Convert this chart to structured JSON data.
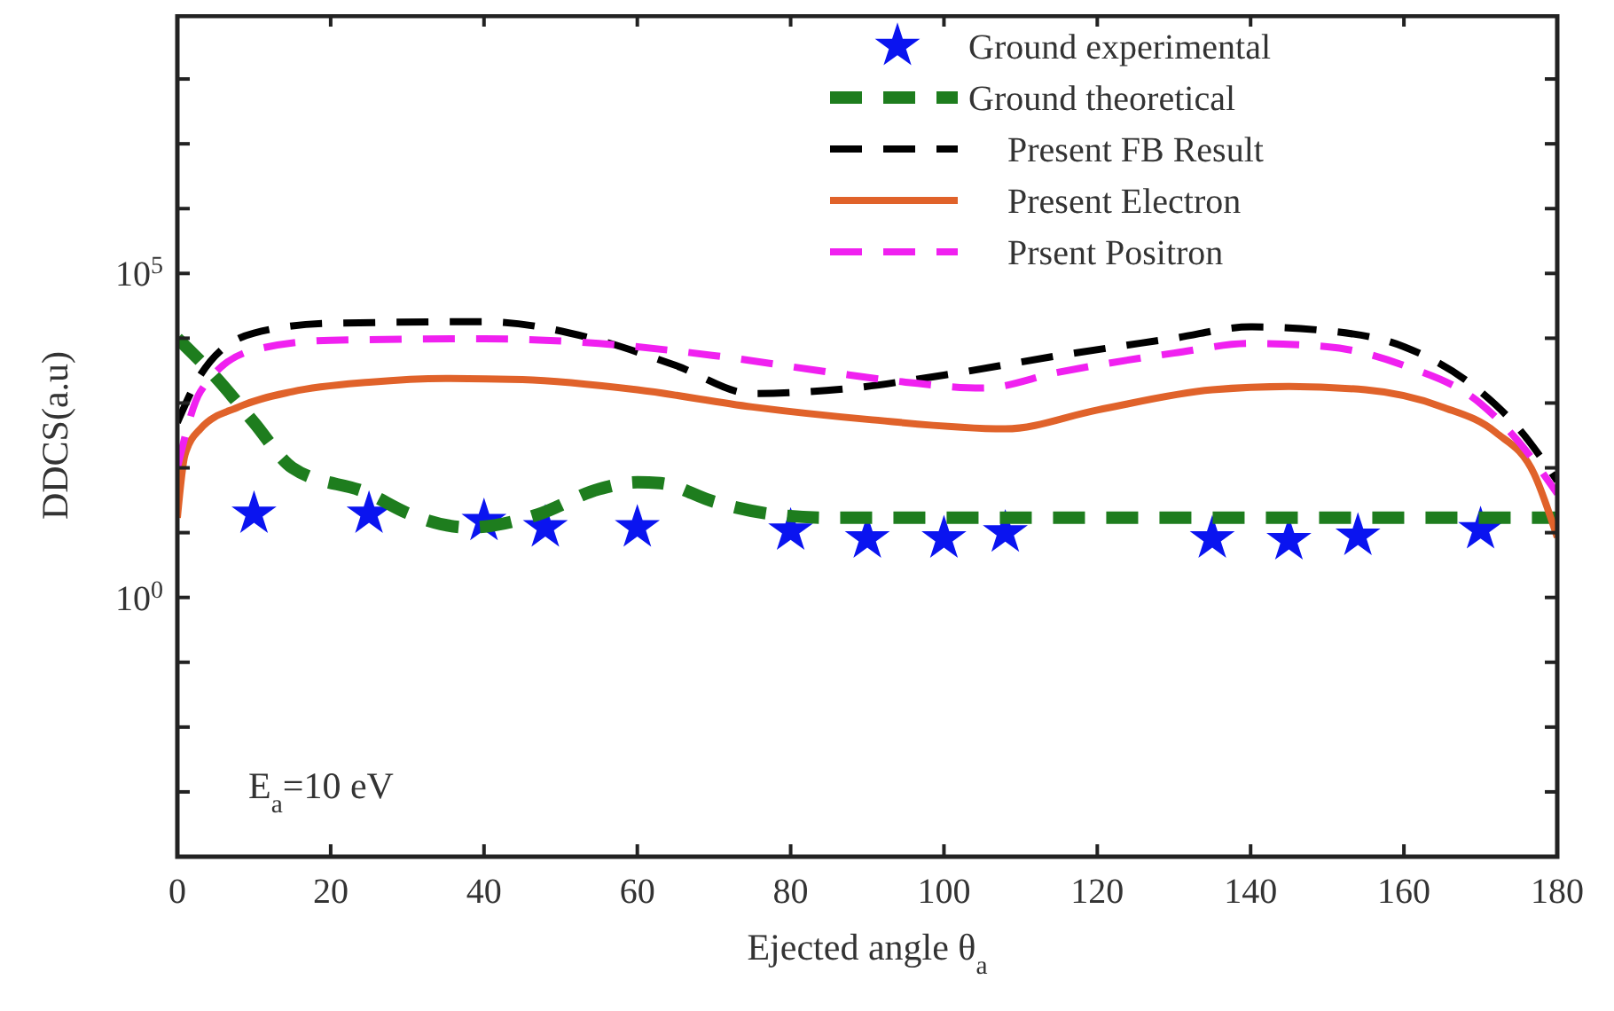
{
  "chart_data": {
    "type": "line",
    "xlabel": "Ejected angle θ$_{a}$",
    "ylabel": "DDCS(a.u)",
    "log": "y",
    "xlim": [
      0,
      180
    ],
    "xticks": [
      0,
      20,
      40,
      60,
      80,
      100,
      120,
      140,
      160,
      180
    ],
    "ylim": [
      0.0001,
      1000000000
    ],
    "yticks": [
      {
        "value": 0.0001,
        "label": null
      },
      {
        "value": 0.001,
        "label": null
      },
      {
        "value": 0.01,
        "label": null
      },
      {
        "value": 0.1,
        "label": null
      },
      {
        "value": 1,
        "label": "10$^{0}$"
      },
      {
        "value": 10,
        "label": null
      },
      {
        "value": 100,
        "label": null
      },
      {
        "value": 1000,
        "label": null
      },
      {
        "value": 10000,
        "label": null
      },
      {
        "value": 100000,
        "label": "10$^{5}$"
      },
      {
        "value": 1000000,
        "label": null
      },
      {
        "value": 10000000,
        "label": null
      },
      {
        "value": 100000000,
        "label": null
      },
      {
        "value": 1000000000,
        "label": null
      }
    ],
    "legend": "top right",
    "annotations": [
      "E$_{a}$=10 eV"
    ],
    "series": [
      {
        "name": "Ground experimental",
        "type": "scatter",
        "marker": "star",
        "color": "#0a14f0",
        "x": [
          10,
          25,
          40,
          48,
          60,
          80,
          90,
          100,
          108,
          135,
          145,
          154,
          170
        ],
        "values": [
          19.5,
          19.5,
          15,
          12,
          12,
          10.7,
          8.1,
          8.1,
          10,
          8.1,
          7.6,
          8.9,
          11.2
        ]
      },
      {
        "name": "Ground theoretical",
        "line_style": "dashed",
        "color": "#1e7d1e",
        "x": [
          0,
          5,
          10,
          15,
          25,
          30,
          38,
          47,
          55,
          60,
          63,
          70,
          78,
          85,
          120,
          150,
          180
        ],
        "values": [
          10000,
          2500,
          500,
          100,
          40,
          20,
          12,
          19,
          47,
          60,
          58,
          30,
          19,
          17,
          17,
          17,
          17
        ]
      },
      {
        "name": "Present FB Result",
        "line_style": "dashed",
        "color": "#000000",
        "x": [
          0,
          3,
          10,
          20,
          40,
          55,
          65,
          75,
          88,
          100,
          115,
          130,
          140,
          150,
          160,
          170,
          175,
          180
        ],
        "values": [
          500,
          2700,
          12000,
          17000,
          18000,
          9300,
          3800,
          1400,
          1700,
          2700,
          5400,
          10000,
          15000,
          13000,
          7400,
          1500,
          400,
          63
        ]
      },
      {
        "name": "Present Electron",
        "line_style": "solid",
        "color": "#e0622a",
        "x": [
          0,
          1,
          3,
          8,
          15,
          25,
          35,
          45,
          60,
          75,
          90,
          108,
          120,
          135,
          145,
          155,
          165,
          172,
          177,
          180
        ],
        "values": [
          17,
          160,
          400,
          870,
          1500,
          2100,
          2400,
          2300,
          1600,
          870,
          560,
          400,
          780,
          1600,
          1800,
          1600,
          870,
          350,
          80,
          8.5
        ]
      },
      {
        "name": "Prsent Positron",
        "line_style": "dashed",
        "color": "#f020f0",
        "x": [
          0,
          3,
          10,
          20,
          40,
          55,
          70,
          85,
          95,
          105,
          115,
          130,
          140,
          150,
          160,
          170,
          175,
          180
        ],
        "values": [
          100,
          1500,
          6600,
          9300,
          9800,
          8300,
          5400,
          3000,
          2100,
          1700,
          3000,
          5900,
          8300,
          7400,
          3800,
          980,
          250,
          40
        ]
      }
    ]
  }
}
